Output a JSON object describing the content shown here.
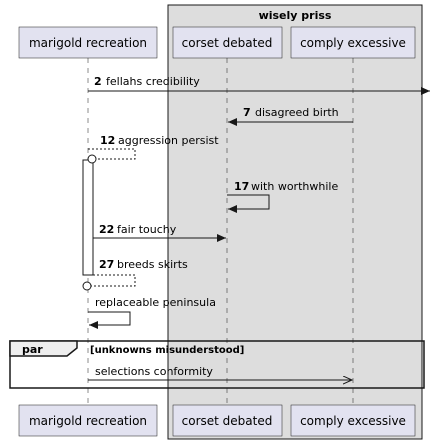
{
  "box": {
    "title": "wisely priss"
  },
  "participants": {
    "marigold": "marigold recreation",
    "corset": "corset debated",
    "comply": "comply excessive"
  },
  "messages": [
    {
      "num": "2",
      "text": "fellahs credibility"
    },
    {
      "num": "7",
      "text": "disagreed birth"
    },
    {
      "num": "12",
      "text": "aggression persist"
    },
    {
      "num": "17",
      "text": "with worthwhile"
    },
    {
      "num": "22",
      "text": "fair touchy"
    },
    {
      "num": "27",
      "text": "breeds skirts"
    },
    {
      "num": "",
      "text": "replaceable peninsula"
    },
    {
      "num": "",
      "text": "selections conformity"
    }
  ],
  "fragment": {
    "keyword": "par",
    "condition": "[unknowns misunderstood]"
  },
  "colors": {
    "participant_fill": "#e2e2f0",
    "participant_border": "#181818",
    "box_fill": "#dddddd",
    "line": "#181818"
  }
}
